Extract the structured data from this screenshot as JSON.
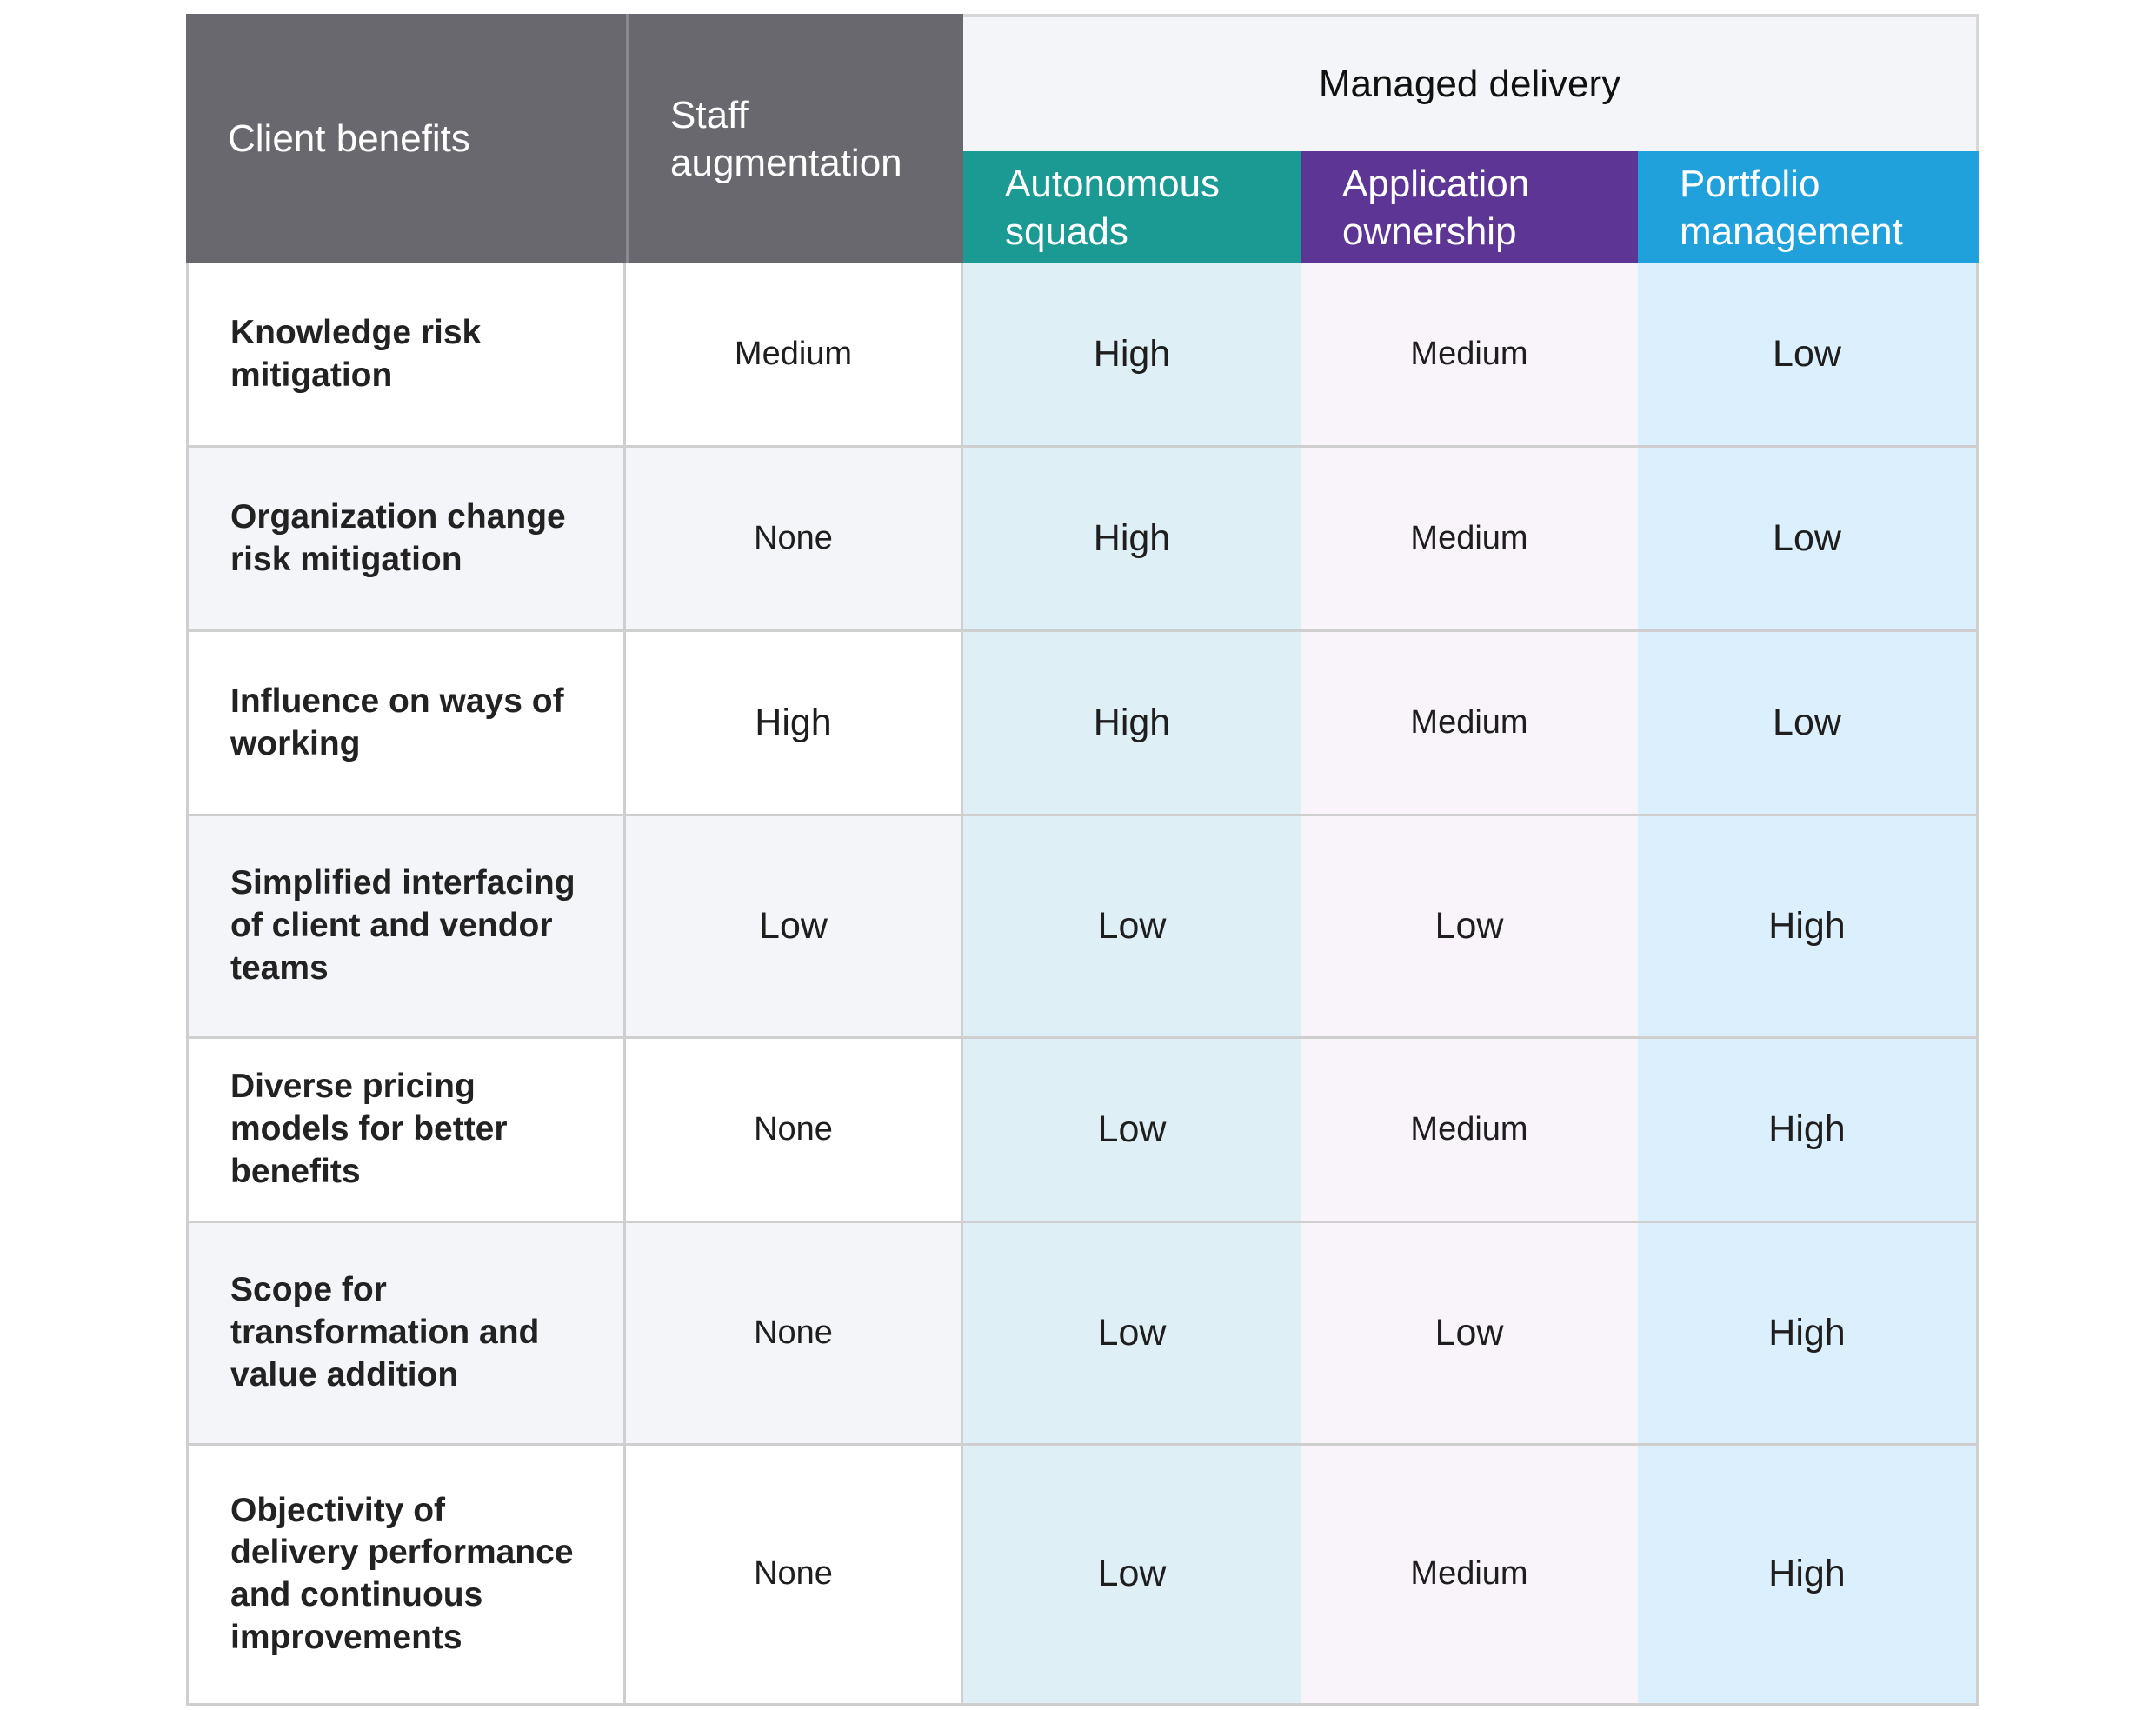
{
  "header": {
    "client_benefits": "Client benefits",
    "staff_augmentation": "Staff augmentation",
    "managed_delivery": "Managed delivery",
    "autonomous_squads": "Autonomous squads",
    "application_ownership": "Application ownership",
    "portfolio_management": "Portfolio management"
  },
  "colors": {
    "header_gray": "#68686e",
    "autonomous_teal": "#1a9a92",
    "application_purple": "#5d3594",
    "portfolio_blue": "#20a1dc"
  },
  "rows": [
    {
      "label": "Knowledge risk mitigation",
      "values": [
        "Medium",
        "High",
        "Medium",
        "Low"
      ]
    },
    {
      "label": "Organization change risk mitigation",
      "values": [
        "None",
        "High",
        "Medium",
        "Low"
      ]
    },
    {
      "label": "Influence on ways of working",
      "values": [
        "High",
        "High",
        "Medium",
        "Low"
      ]
    },
    {
      "label": "Simplified interfacing of client and vendor teams",
      "values": [
        "Low",
        "Low",
        "Low",
        "High"
      ]
    },
    {
      "label": "Diverse pricing models for better benefits",
      "values": [
        "None",
        "Low",
        "Medium",
        "High"
      ]
    },
    {
      "label": "Scope for transformation and value addition",
      "values": [
        "None",
        "Low",
        "Low",
        "High"
      ]
    },
    {
      "label": "Objectivity of delivery performance and continuous improvements",
      "values": [
        "None",
        "Low",
        "Medium",
        "High"
      ]
    }
  ]
}
